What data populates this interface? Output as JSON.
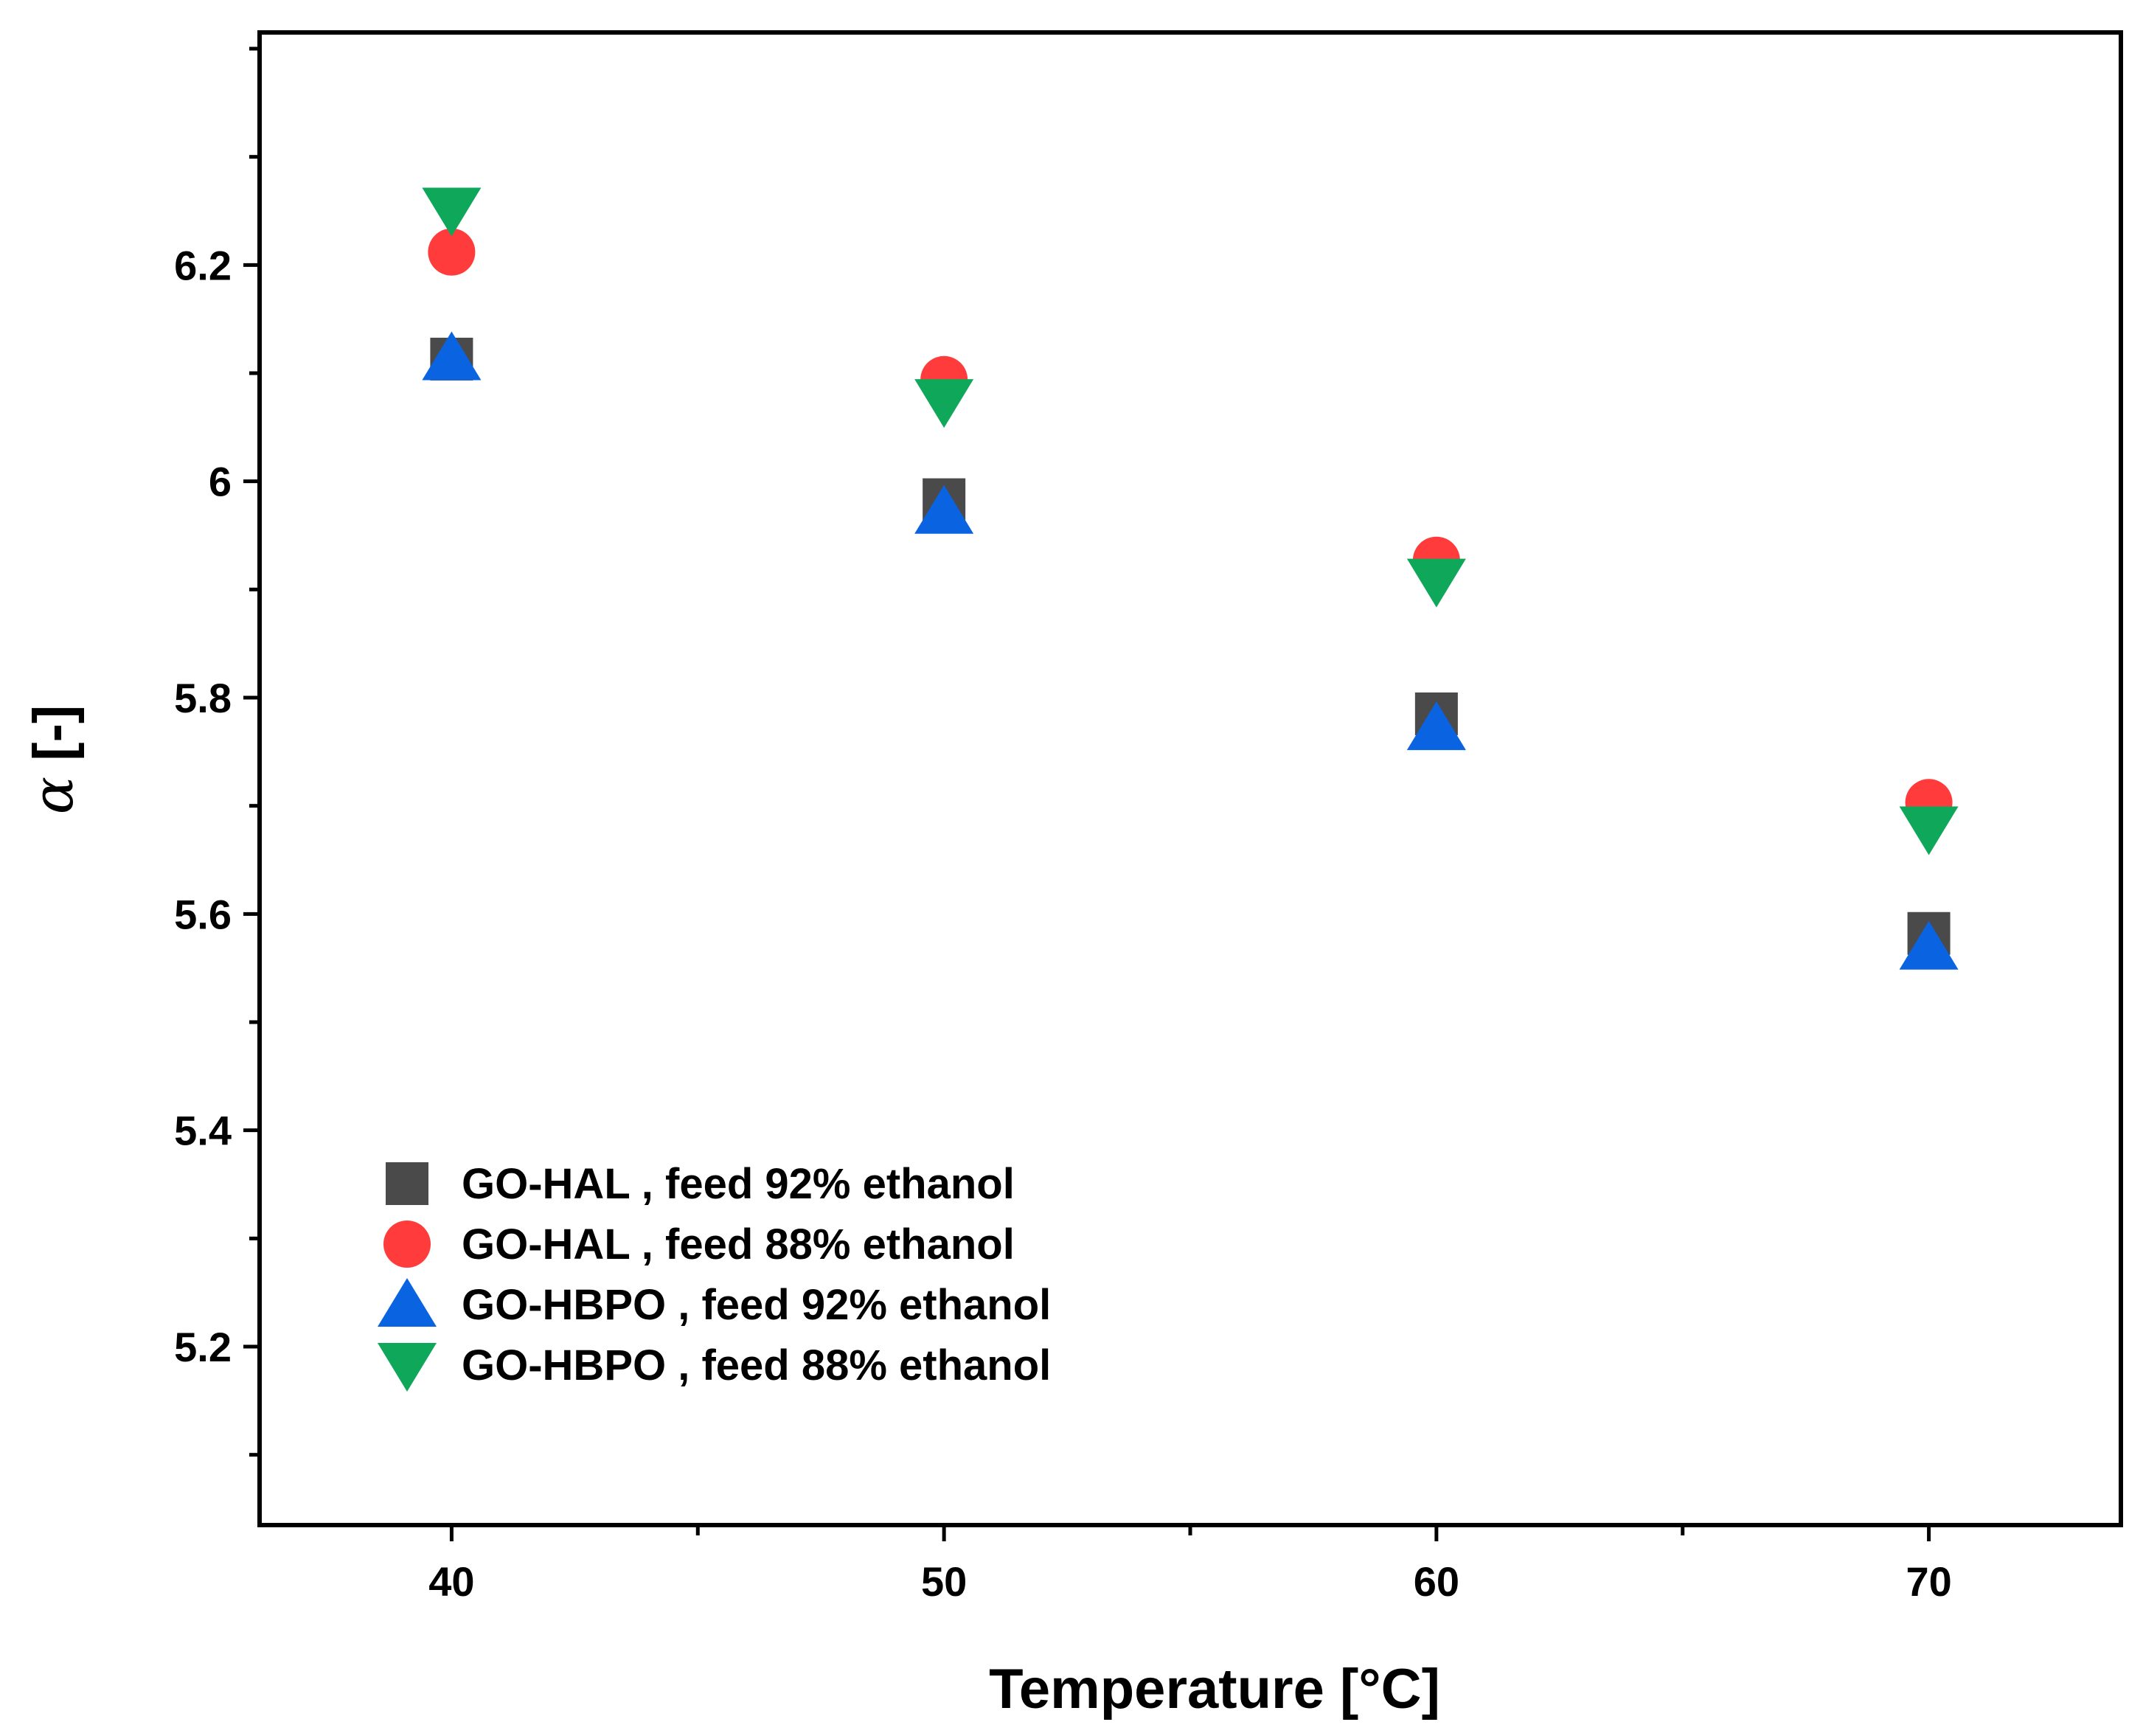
{
  "chart_data": {
    "type": "scatter",
    "title": "",
    "xlabel": "Temperature [°C]",
    "ylabel_symbol": "α",
    "ylabel_rest": " [-]",
    "x": [
      40,
      50,
      60,
      70
    ],
    "xlim": [
      36.1,
      73.9
    ],
    "ylim": [
      5.035,
      6.415
    ],
    "x_ticks": [
      40,
      50,
      60,
      70
    ],
    "x_tick_labels": [
      "40",
      "50",
      "60",
      "70"
    ],
    "y_ticks": [
      5.2,
      5.4,
      5.6,
      5.8,
      6.0,
      6.2
    ],
    "y_tick_labels": [
      "5.2",
      "5.4",
      "5.6",
      "5.8",
      "6",
      "6.2"
    ],
    "legend_position": "bottom-left",
    "grid": false,
    "series": [
      {
        "name": "GO-HAL , feed 92% ethanol",
        "marker": "square",
        "color": "#4a4a4a",
        "values": [
          6.113,
          5.983,
          5.785,
          5.582
        ]
      },
      {
        "name": "GO-HAL , feed 88% ethanol",
        "marker": "circle",
        "color": "#ff3b3b",
        "values": [
          6.212,
          6.094,
          5.927,
          5.703
        ]
      },
      {
        "name": "GO-HBPO , feed 92% ethanol",
        "marker": "triangle-up",
        "color": "#0a63e0",
        "values": [
          6.114,
          5.972,
          5.772,
          5.569
        ]
      },
      {
        "name": "GO-HBPO , feed 88% ethanol",
        "marker": "triangle-down",
        "color": "#0fa85a",
        "values": [
          6.251,
          6.074,
          5.908,
          5.679
        ]
      }
    ]
  }
}
